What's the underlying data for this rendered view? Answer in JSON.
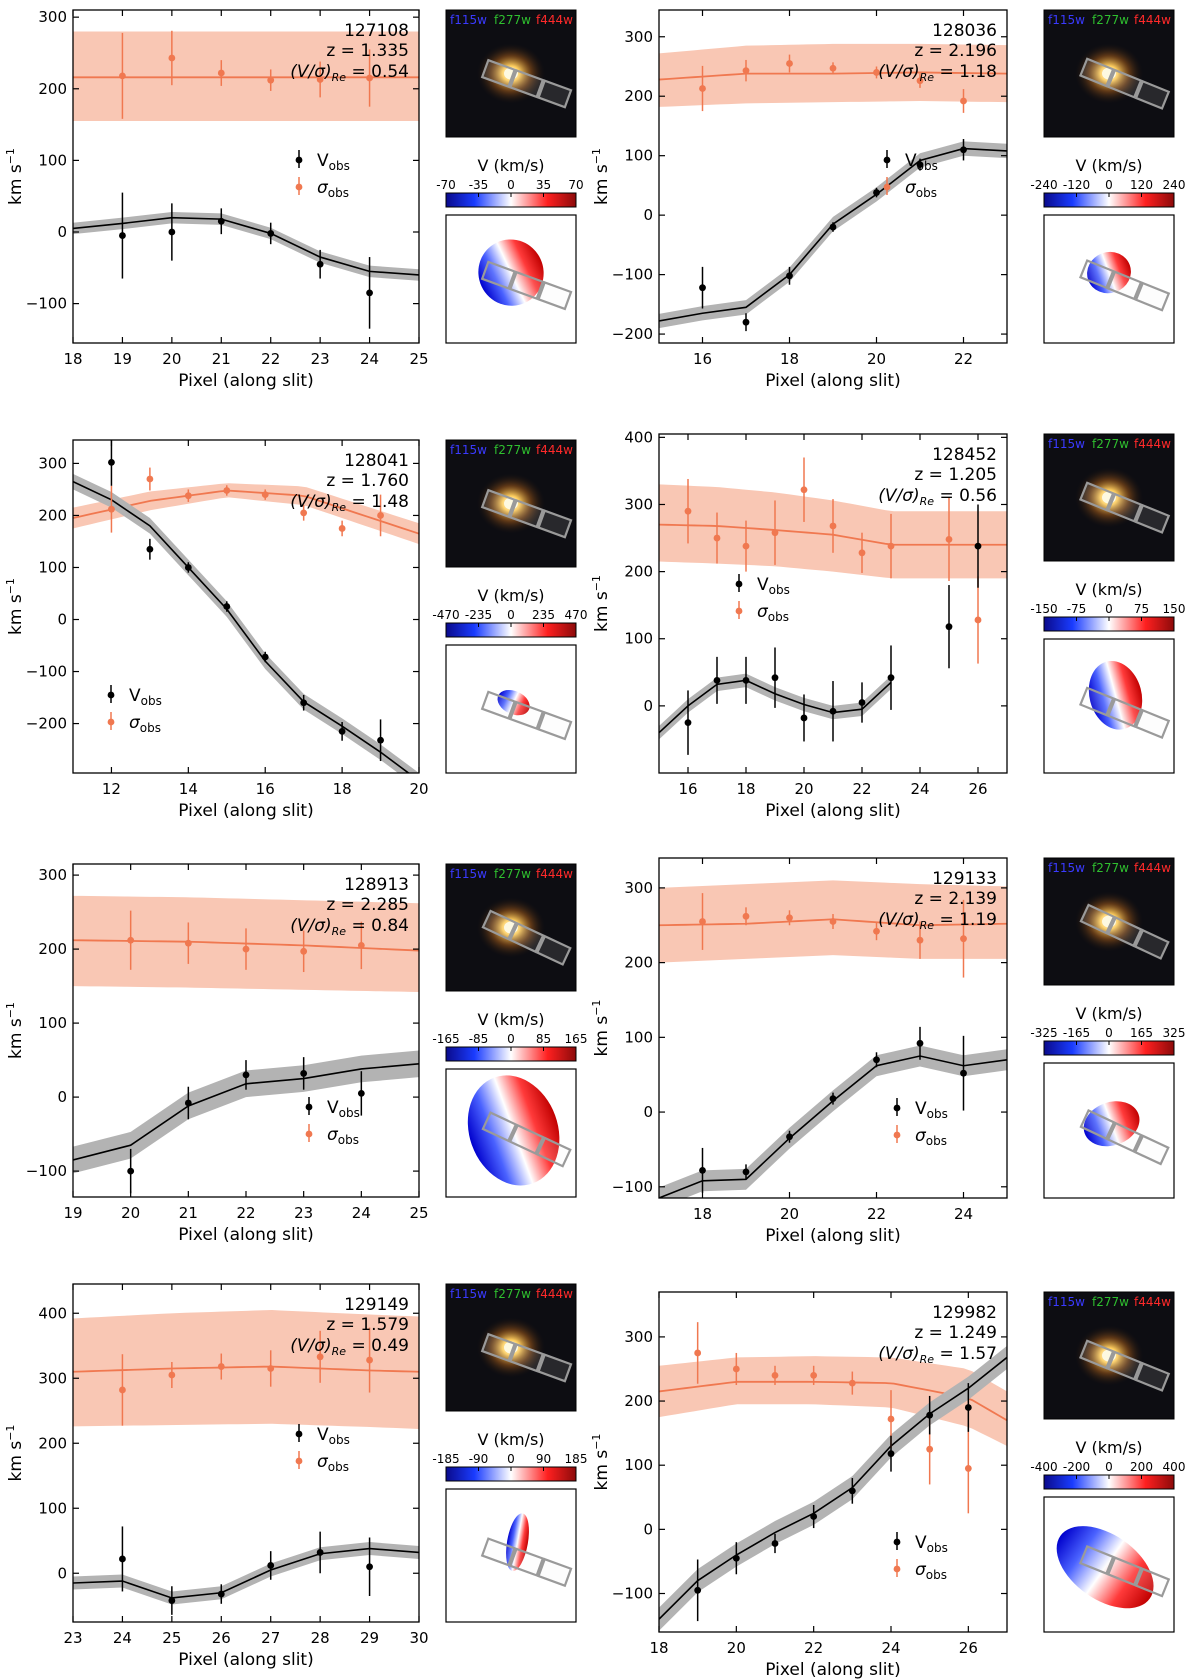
{
  "common": {
    "xlabel": "Pixel (along slit)",
    "ylabel": "km s",
    "ylabel_sup": "−1",
    "legend_v": "V",
    "legend_v_sub": "obs",
    "legend_s": "σ",
    "legend_s_sub": "obs",
    "filters": [
      "f115w",
      "f277w",
      "f444w"
    ],
    "colorbar_label": "V (km/s)",
    "vs_prefix": "(V/σ)",
    "vs_sub": "Re",
    "colors": {
      "v": "#000000",
      "v_band": "#b3b3b3",
      "s": "#f07850",
      "s_band": "#f9c7b4",
      "f115w": "#3a3aff",
      "f277w": "#2fbf2f",
      "f444w": "#ff2a2a"
    }
  },
  "chart_data": [
    {
      "type": "line",
      "id": "127108",
      "z": "1.335",
      "vsigma": "0.54",
      "xlim": [
        18,
        25
      ],
      "ylim": [
        -155,
        310
      ],
      "xticks": [
        18,
        19,
        20,
        21,
        22,
        23,
        24,
        25
      ],
      "yticks": [
        -100,
        0,
        100,
        200,
        300
      ],
      "vobs": {
        "x": [
          19,
          20,
          21,
          22,
          23,
          24
        ],
        "y": [
          -5,
          0,
          15,
          -2,
          -45,
          -85
        ],
        "err": [
          60,
          40,
          18,
          15,
          20,
          50
        ]
      },
      "sobs": {
        "x": [
          19,
          20,
          21,
          22,
          23,
          24
        ],
        "y": [
          218,
          243,
          222,
          212,
          213,
          215
        ],
        "err": [
          60,
          38,
          18,
          15,
          25,
          40
        ]
      },
      "vmodel": {
        "x": [
          18,
          19,
          20,
          21,
          22,
          23,
          24,
          25
        ],
        "y": [
          5,
          12,
          20,
          18,
          -2,
          -35,
          -55,
          -60
        ],
        "band": 8
      },
      "smodel": {
        "x": [
          18,
          25
        ],
        "y": [
          216,
          216
        ],
        "lo": [
          155,
          155
        ],
        "hi": [
          280,
          280
        ]
      },
      "colorbar": {
        "ticks": [
          "-70",
          "-35",
          "0",
          "35",
          "70"
        ]
      },
      "vmap": {
        "angle": -25,
        "rx": 0.25,
        "ry": 0.26,
        "cx": 0.5,
        "cy": 0.45
      },
      "slit_angle": 20,
      "legend_pos": "middle-right"
    },
    {
      "type": "line",
      "id": "128036",
      "z": "2.196",
      "vsigma": "1.18",
      "xlim": [
        15,
        23
      ],
      "ylim": [
        -215,
        345
      ],
      "xticks": [
        16,
        18,
        20,
        22
      ],
      "yticks": [
        -200,
        -100,
        0,
        100,
        200,
        300
      ],
      "vobs": {
        "x": [
          16,
          17,
          18,
          19,
          20,
          21,
          22
        ],
        "y": [
          -122,
          -180,
          -102,
          -20,
          38,
          85,
          110
        ],
        "err": [
          35,
          15,
          15,
          8,
          8,
          10,
          18
        ]
      },
      "sobs": {
        "x": [
          16,
          17,
          18,
          19,
          20,
          21,
          22
        ],
        "y": [
          213,
          243,
          255,
          247,
          240,
          226,
          192
        ],
        "err": [
          38,
          18,
          15,
          10,
          10,
          12,
          20
        ]
      },
      "vmodel": {
        "x": [
          15,
          16,
          17,
          18,
          19,
          20,
          21,
          22,
          23
        ],
        "y": [
          -178,
          -165,
          -155,
          -100,
          -15,
          35,
          92,
          112,
          108
        ],
        "band": 12
      },
      "smodel": {
        "x": [
          15,
          17,
          19,
          21,
          23
        ],
        "y": [
          228,
          238,
          238,
          240,
          238
        ],
        "lo": [
          182,
          188,
          190,
          192,
          190
        ],
        "hi": [
          272,
          285,
          288,
          288,
          286
        ]
      },
      "colorbar": {
        "ticks": [
          "-240",
          "-120",
          "0",
          "120",
          "240"
        ]
      },
      "vmap": {
        "angle": -20,
        "rx": 0.17,
        "ry": 0.16,
        "cx": 0.5,
        "cy": 0.45
      },
      "slit_angle": 22,
      "legend_pos": "middle-right"
    },
    {
      "type": "line",
      "id": "128041",
      "z": "1.760",
      "vsigma": "1.48",
      "xlim": [
        11,
        20
      ],
      "ylim": [
        -295,
        345
      ],
      "xticks": [
        12,
        14,
        16,
        18,
        20
      ],
      "yticks": [
        -200,
        -100,
        0,
        100,
        200,
        300
      ],
      "vobs": {
        "x": [
          12,
          13,
          14,
          15,
          16,
          17,
          18,
          19
        ],
        "y": [
          302,
          135,
          100,
          25,
          -72,
          -160,
          -215,
          -232
        ],
        "err": [
          45,
          20,
          10,
          10,
          10,
          15,
          18,
          40
        ]
      },
      "sobs": {
        "x": [
          12,
          13,
          14,
          15,
          16,
          17,
          18,
          19
        ],
        "y": [
          212,
          270,
          238,
          248,
          240,
          205,
          175,
          200
        ],
        "err": [
          45,
          22,
          12,
          10,
          10,
          15,
          15,
          40
        ]
      },
      "vmodel": {
        "x": [
          11,
          12,
          13,
          14,
          15,
          16,
          17,
          18,
          19,
          20
        ],
        "y": [
          265,
          230,
          180,
          100,
          20,
          -80,
          -158,
          -205,
          -255,
          -310
        ],
        "band": 15
      },
      "smodel": {
        "x": [
          11,
          13,
          15,
          17,
          20
        ],
        "y": [
          195,
          228,
          248,
          238,
          165
        ],
        "lo": [
          175,
          210,
          235,
          220,
          145
        ],
        "hi": [
          215,
          246,
          262,
          256,
          185
        ]
      },
      "colorbar": {
        "ticks": [
          "-470",
          "-235",
          "0",
          "235",
          "470"
        ]
      },
      "vmap": {
        "angle": 25,
        "rx": 0.13,
        "ry": 0.09,
        "cx": 0.52,
        "cy": 0.45
      },
      "slit_angle": 20,
      "legend_pos": "bottom-left"
    },
    {
      "type": "line",
      "id": "128452",
      "z": "1.205",
      "vsigma": "0.56",
      "xlim": [
        15,
        27
      ],
      "ylim": [
        -100,
        405
      ],
      "xticks": [
        16,
        18,
        20,
        22,
        24,
        26
      ],
      "yticks": [
        0,
        100,
        200,
        300,
        400
      ],
      "vobs": {
        "x": [
          16,
          17,
          18,
          19,
          20,
          21,
          22,
          23,
          25,
          26
        ],
        "y": [
          -25,
          38,
          38,
          42,
          -18,
          -8,
          5,
          42,
          118,
          238
        ],
        "err": [
          48,
          35,
          35,
          45,
          35,
          45,
          30,
          48,
          62,
          62
        ]
      },
      "sobs": {
        "x": [
          16,
          17,
          18,
          19,
          20,
          21,
          22,
          23,
          25,
          26
        ],
        "y": [
          290,
          250,
          238,
          258,
          322,
          268,
          228,
          238,
          248,
          128
        ],
        "err": [
          48,
          38,
          38,
          48,
          48,
          40,
          30,
          48,
          62,
          65
        ]
      },
      "vmodel": {
        "x": [
          15,
          16,
          17,
          18,
          19,
          20,
          21,
          22,
          23
        ],
        "y": [
          -40,
          0,
          32,
          38,
          18,
          2,
          -10,
          -5,
          35
        ],
        "band": 10
      },
      "smodel": {
        "x": [
          15,
          17,
          19,
          21,
          23
        ],
        "y": [
          270,
          268,
          262,
          255,
          240
        ],
        "lo": [
          215,
          212,
          208,
          200,
          190
        ],
        "hi": [
          330,
          326,
          318,
          306,
          290
        ]
      },
      "colorbar": {
        "ticks": [
          "-150",
          "-75",
          "0",
          "75",
          "150"
        ]
      },
      "vmap": {
        "angle": -15,
        "rx": 0.2,
        "ry": 0.26,
        "cx": 0.55,
        "cy": 0.42
      },
      "slit_angle": 22,
      "legend_pos": "middle-left"
    },
    {
      "type": "line",
      "id": "128913",
      "z": "2.285",
      "vsigma": "0.84",
      "xlim": [
        19,
        25
      ],
      "ylim": [
        -135,
        315
      ],
      "xticks": [
        19,
        20,
        21,
        22,
        23,
        24,
        25
      ],
      "yticks": [
        -100,
        0,
        100,
        200,
        300
      ],
      "vobs": {
        "x": [
          20,
          21,
          22,
          23,
          24
        ],
        "y": [
          -100,
          -8,
          30,
          32,
          5
        ],
        "err": [
          30,
          22,
          20,
          22,
          30
        ]
      },
      "sobs": {
        "x": [
          20,
          21,
          22,
          23,
          24
        ],
        "y": [
          212,
          208,
          200,
          197,
          205
        ],
        "err": [
          40,
          28,
          28,
          28,
          32
        ]
      },
      "vmodel": {
        "x": [
          19,
          20,
          21,
          22,
          23,
          24,
          25
        ],
        "y": [
          -85,
          -65,
          -12,
          18,
          25,
          38,
          45
        ],
        "band": 18
      },
      "smodel": {
        "x": [
          19,
          21,
          23,
          25
        ],
        "y": [
          212,
          210,
          205,
          198
        ],
        "lo": [
          150,
          148,
          145,
          142
        ],
        "hi": [
          272,
          270,
          266,
          262
        ]
      },
      "colorbar": {
        "ticks": [
          "-165",
          "-85",
          "0",
          "85",
          "165"
        ]
      },
      "vmap": {
        "angle": -20,
        "rx": 0.34,
        "ry": 0.44,
        "cx": 0.52,
        "cy": 0.48
      },
      "slit_angle": 25,
      "legend_pos": "bottom-right"
    },
    {
      "type": "line",
      "id": "129133",
      "z": "2.139",
      "vsigma": "1.19",
      "xlim": [
        17,
        25
      ],
      "ylim": [
        -115,
        340
      ],
      "xticks": [
        18,
        20,
        22,
        24
      ],
      "yticks": [
        -100,
        0,
        100,
        200,
        300
      ],
      "vobs": {
        "x": [
          18,
          19,
          20,
          21,
          22,
          23,
          24
        ],
        "y": [
          -78,
          -80,
          -33,
          18,
          70,
          92,
          52
        ],
        "err": [
          30,
          10,
          8,
          8,
          10,
          22,
          50
        ]
      },
      "sobs": {
        "x": [
          18,
          19,
          20,
          21,
          22,
          23,
          24
        ],
        "y": [
          255,
          262,
          260,
          255,
          242,
          230,
          232
        ],
        "err": [
          38,
          12,
          10,
          10,
          12,
          25,
          52
        ]
      },
      "vmodel": {
        "x": [
          17,
          18,
          19,
          20,
          21,
          22,
          23,
          24,
          25
        ],
        "y": [
          -115,
          -92,
          -90,
          -35,
          15,
          62,
          75,
          62,
          70
        ],
        "band": 14
      },
      "smodel": {
        "x": [
          17,
          19,
          21,
          23,
          25
        ],
        "y": [
          250,
          252,
          258,
          250,
          252
        ],
        "lo": [
          200,
          205,
          210,
          205,
          205
        ],
        "hi": [
          300,
          305,
          310,
          305,
          302
        ]
      },
      "colorbar": {
        "ticks": [
          "-325",
          "-165",
          "0",
          "165",
          "325"
        ]
      },
      "vmap": {
        "angle": -20,
        "rx": 0.22,
        "ry": 0.16,
        "cx": 0.52,
        "cy": 0.45
      },
      "slit_angle": 25,
      "legend_pos": "bottom-right"
    },
    {
      "type": "line",
      "id": "129149",
      "z": "1.579",
      "vsigma": "0.49",
      "xlim": [
        23,
        30
      ],
      "ylim": [
        -75,
        445
      ],
      "xticks": [
        23,
        24,
        25,
        26,
        27,
        28,
        29,
        30
      ],
      "yticks": [
        0,
        100,
        200,
        300,
        400
      ],
      "vobs": {
        "x": [
          24,
          25,
          26,
          27,
          28,
          29
        ],
        "y": [
          22,
          -42,
          -32,
          12,
          32,
          10
        ],
        "err": [
          50,
          22,
          15,
          22,
          32,
          45
        ]
      },
      "sobs": {
        "x": [
          24,
          25,
          26,
          27,
          28,
          29
        ],
        "y": [
          282,
          305,
          318,
          315,
          333,
          328
        ],
        "err": [
          55,
          20,
          20,
          28,
          40,
          50
        ]
      },
      "vmodel": {
        "x": [
          23,
          24,
          25,
          26,
          27,
          28,
          29,
          30
        ],
        "y": [
          -15,
          -12,
          -38,
          -30,
          5,
          30,
          38,
          32
        ],
        "band": 10
      },
      "smodel": {
        "x": [
          23,
          25,
          27,
          29,
          30
        ],
        "y": [
          310,
          315,
          318,
          312,
          310
        ],
        "lo": [
          226,
          228,
          230,
          225,
          222
        ],
        "hi": [
          392,
          400,
          405,
          398,
          395
        ]
      },
      "colorbar": {
        "ticks": [
          "-185",
          "-90",
          "0",
          "90",
          "185"
        ]
      },
      "vmap": {
        "angle": 10,
        "rx": 0.08,
        "ry": 0.22,
        "cx": 0.55,
        "cy": 0.4
      },
      "slit_angle": 20,
      "legend_pos": "middle-right"
    },
    {
      "type": "line",
      "id": "129982",
      "z": "1.249",
      "vsigma": "1.57",
      "xlim": [
        18,
        27
      ],
      "ylim": [
        -160,
        370
      ],
      "xticks": [
        18,
        20,
        22,
        24,
        26
      ],
      "yticks": [
        -100,
        0,
        100,
        200,
        300
      ],
      "vobs": {
        "x": [
          19,
          20,
          21,
          22,
          23,
          24,
          25,
          26
        ],
        "y": [
          -95,
          -45,
          -22,
          20,
          60,
          118,
          178,
          190
        ],
        "err": [
          48,
          25,
          15,
          18,
          20,
          28,
          30,
          38
        ]
      },
      "sobs": {
        "x": [
          19,
          20,
          21,
          22,
          23,
          24,
          25,
          26
        ],
        "y": [
          275,
          250,
          240,
          240,
          228,
          172,
          125,
          95
        ],
        "err": [
          48,
          25,
          15,
          15,
          18,
          45,
          55,
          70
        ]
      },
      "vmodel": {
        "x": [
          18,
          19,
          20,
          21,
          22,
          23,
          24,
          25,
          26,
          27
        ],
        "y": [
          -140,
          -80,
          -40,
          -5,
          25,
          65,
          130,
          180,
          220,
          268
        ],
        "band": 18
      },
      "smodel": {
        "x": [
          18,
          20,
          22,
          24,
          26,
          27
        ],
        "y": [
          215,
          230,
          230,
          228,
          205,
          170
        ],
        "lo": [
          175,
          195,
          195,
          190,
          160,
          130
        ],
        "hi": [
          255,
          268,
          270,
          268,
          250,
          215
        ]
      },
      "colorbar": {
        "ticks": [
          "-400",
          "-200",
          "0",
          "200",
          "400"
        ]
      },
      "vmap": {
        "angle": 35,
        "rx": 0.42,
        "ry": 0.24,
        "cx": 0.47,
        "cy": 0.52
      },
      "slit_angle": 22,
      "legend_pos": "bottom-right"
    }
  ]
}
